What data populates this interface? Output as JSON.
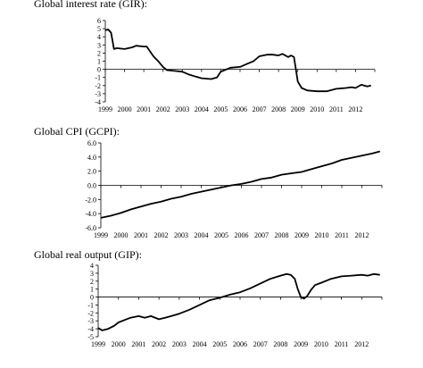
{
  "chart_data": [
    {
      "type": "line",
      "title": "Global interest rate (GIR):",
      "xlabel": "",
      "ylabel": "",
      "ylim": [
        -4,
        6
      ],
      "yticks": [
        "6",
        "5",
        "4",
        "3",
        "2",
        "1",
        "0",
        "-1",
        "-2",
        "-3",
        "-4"
      ],
      "xticks": [
        "1999",
        "2000",
        "2001",
        "2002",
        "2003",
        "2004",
        "2005",
        "2006",
        "2007",
        "2008",
        "2009",
        "2010",
        "2011",
        "2012"
      ],
      "grid": false,
      "series": [
        {
          "x": [
            1999.0,
            1999.15,
            1999.3,
            1999.45,
            1999.6,
            2000.0,
            2000.4,
            2000.6,
            2001.0,
            2001.15,
            2001.5,
            2001.75,
            2002.0,
            2002.2,
            2002.6,
            2003.0,
            2003.3,
            2003.7,
            2004.0,
            2004.5,
            2004.8,
            2005.0,
            2005.5,
            2006.0,
            2006.4,
            2006.7,
            2007.0,
            2007.4,
            2007.7,
            2008.0,
            2008.2,
            2008.5,
            2008.65,
            2008.8,
            2009.0,
            2009.2,
            2009.5,
            2010.0,
            2010.5,
            2011.0,
            2011.5,
            2011.8,
            2012.0,
            2012.3,
            2012.6,
            2012.8
          ],
          "y": [
            4.8,
            4.9,
            4.5,
            2.5,
            2.6,
            2.5,
            2.7,
            2.9,
            2.8,
            2.8,
            1.6,
            1.0,
            0.3,
            -0.1,
            -0.2,
            -0.3,
            -0.6,
            -0.9,
            -1.1,
            -1.2,
            -1.0,
            -0.3,
            0.2,
            0.3,
            0.7,
            1.0,
            1.6,
            1.8,
            1.8,
            1.7,
            1.9,
            1.5,
            1.7,
            1.5,
            -1.5,
            -2.3,
            -2.6,
            -2.7,
            -2.7,
            -2.4,
            -2.3,
            -2.2,
            -2.3,
            -1.9,
            -2.1,
            -2.0
          ]
        }
      ]
    },
    {
      "type": "line",
      "title": "Global CPI (GCPI):",
      "xlabel": "",
      "ylabel": "",
      "ylim": [
        -6,
        6
      ],
      "yticks": [
        "6.0",
        "4.0",
        "2.0",
        "0.0",
        "-2.0",
        "-4.0",
        "-6.0"
      ],
      "xticks": [
        "1999",
        "2000",
        "2001",
        "2002",
        "2003",
        "2004",
        "2005",
        "2006",
        "2007",
        "2008",
        "2009",
        "2010",
        "2011",
        "2012"
      ],
      "grid": false,
      "series": [
        {
          "x": [
            1999.0,
            1999.5,
            2000.0,
            2000.5,
            2001.0,
            2001.5,
            2002.0,
            2002.5,
            2003.0,
            2003.5,
            2004.0,
            2004.5,
            2005.0,
            2005.5,
            2006.0,
            2006.5,
            2007.0,
            2007.5,
            2008.0,
            2008.5,
            2009.0,
            2009.5,
            2010.0,
            2010.5,
            2011.0,
            2011.5,
            2012.0,
            2012.5,
            2012.9
          ],
          "y": [
            -4.6,
            -4.3,
            -3.9,
            -3.4,
            -3.0,
            -2.6,
            -2.3,
            -1.9,
            -1.6,
            -1.2,
            -0.9,
            -0.6,
            -0.3,
            0.0,
            0.2,
            0.5,
            0.9,
            1.1,
            1.5,
            1.7,
            1.9,
            2.3,
            2.7,
            3.1,
            3.6,
            3.9,
            4.2,
            4.5,
            4.8
          ]
        }
      ]
    },
    {
      "type": "line",
      "title": "Global real output (GIP):",
      "xlabel": "",
      "ylabel": "",
      "ylim": [
        -5,
        4
      ],
      "yticks": [
        "4",
        "3",
        "2",
        "1",
        "0",
        "-1",
        "-2",
        "-3",
        "-4",
        "-5"
      ],
      "xticks": [
        "1999",
        "2000",
        "2001",
        "2002",
        "2003",
        "2004",
        "2005",
        "2006",
        "2007",
        "2008",
        "2009",
        "2010",
        "2011",
        "2012"
      ],
      "grid": false,
      "series": [
        {
          "x": [
            1999.0,
            1999.2,
            1999.5,
            1999.8,
            2000.0,
            2000.3,
            2000.6,
            2001.0,
            2001.3,
            2001.6,
            2002.0,
            2002.3,
            2002.6,
            2003.0,
            2003.5,
            2004.0,
            2004.5,
            2005.0,
            2005.5,
            2006.0,
            2006.5,
            2007.0,
            2007.5,
            2008.0,
            2008.3,
            2008.5,
            2008.7,
            2008.85,
            2009.0,
            2009.15,
            2009.3,
            2009.5,
            2009.7,
            2010.0,
            2010.5,
            2011.0,
            2011.5,
            2012.0,
            2012.3,
            2012.6,
            2012.9
          ],
          "y": [
            -3.9,
            -4.2,
            -4.0,
            -3.6,
            -3.2,
            -2.9,
            -2.6,
            -2.4,
            -2.6,
            -2.4,
            -2.8,
            -2.6,
            -2.4,
            -2.1,
            -1.6,
            -1.0,
            -0.4,
            -0.1,
            0.3,
            0.6,
            1.1,
            1.7,
            2.3,
            2.7,
            2.9,
            2.8,
            2.3,
            1.0,
            0.0,
            -0.2,
            0.1,
            0.9,
            1.5,
            1.8,
            2.3,
            2.6,
            2.7,
            2.8,
            2.7,
            2.9,
            2.8
          ]
        }
      ]
    }
  ]
}
